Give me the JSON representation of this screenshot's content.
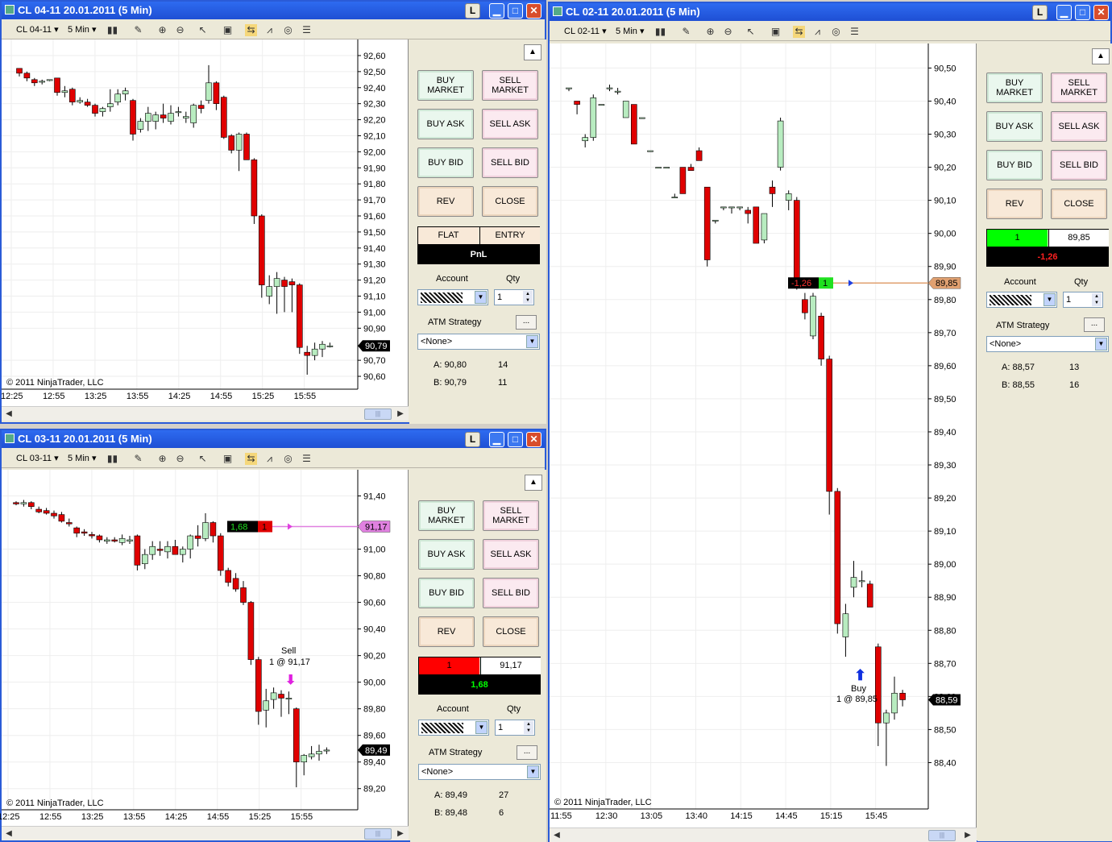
{
  "toolbar": {
    "interval": "5 Min",
    "minimize": "▁",
    "maximize": "□",
    "close": "✕",
    "l_button": "L"
  },
  "windows": [
    {
      "id": "w1",
      "title": "CL 04-11  20.01.2011 (5 Min)",
      "instrument": "CL 04-11",
      "copyright": "© 2011 NinjaTrader, LLC",
      "price_ticks": [
        "92,60",
        "92,50",
        "92,40",
        "92,30",
        "92,20",
        "92,10",
        "92,00",
        "91,90",
        "91,80",
        "91,70",
        "91,60",
        "91,50",
        "91,40",
        "91,30",
        "91,20",
        "91,10",
        "91,00",
        "90,90",
        "90,70",
        "90,60"
      ],
      "time_ticks": [
        "12:25",
        "12:55",
        "13:25",
        "13:55",
        "14:25",
        "14:55",
        "15:25",
        "15:55"
      ],
      "last_price": "90,79",
      "buttons": {
        "buy_market": "BUY MARKET",
        "sell_market": "SELL MARKET",
        "buy_ask": "BUY ASK",
        "sell_ask": "SELL ASK",
        "buy_bid": "BUY BID",
        "sell_bid": "SELL BID",
        "rev": "REV",
        "close": "CLOSE"
      },
      "position": {
        "left": "FLAT",
        "right": "ENTRY",
        "pnl": "PnL",
        "left_color": "#f8e9d8",
        "right_color": "#f8e9d8",
        "pnl_color": "#ffffff"
      },
      "account_label": "Account",
      "qty_label": "Qty",
      "qty": "1",
      "atm_label": "ATM Strategy",
      "atm_more": "...",
      "atm_value": "<None>",
      "ask": "A: 90,80",
      "ask_size": "14",
      "bid": "B: 90,79",
      "bid_size": "11"
    },
    {
      "id": "w2",
      "title": "CL 03-11  20.01.2011 (5 Min)",
      "instrument": "CL 03-11",
      "copyright": "© 2011 NinjaTrader, LLC",
      "price_ticks": [
        "91,40",
        "91,00",
        "90,80",
        "90,60",
        "90,40",
        "90,20",
        "90,00",
        "89,80",
        "89,60",
        "89,40",
        "89,20"
      ],
      "time_ticks": [
        "12:25",
        "12:55",
        "13:25",
        "13:55",
        "14:25",
        "14:55",
        "15:25",
        "15:55"
      ],
      "last_price": "89,49",
      "entry_price": "91,17",
      "order_marker": {
        "pnl": "1,68",
        "qty": "1"
      },
      "execution": {
        "side": "Sell",
        "detail": "1 @ 91,17"
      },
      "buttons": {
        "buy_market": "BUY MARKET",
        "sell_market": "SELL MARKET",
        "buy_ask": "BUY ASK",
        "sell_ask": "SELL ASK",
        "buy_bid": "BUY BID",
        "sell_bid": "SELL BID",
        "rev": "REV",
        "close": "CLOSE"
      },
      "position": {
        "left": "1",
        "right": "91,17",
        "pnl": "1,68",
        "left_color": "#ff0000",
        "right_color": "#ffffff",
        "pnl_color": "#00ff00"
      },
      "account_label": "Account",
      "qty_label": "Qty",
      "qty": "1",
      "atm_label": "ATM Strategy",
      "atm_more": "...",
      "atm_value": "<None>",
      "ask": "A: 89,49",
      "ask_size": "27",
      "bid": "B: 89,48",
      "bid_size": "6"
    },
    {
      "id": "w3",
      "title": "CL 02-11  20.01.2011 (5 Min)",
      "instrument": "CL 02-11",
      "copyright": "© 2011 NinjaTrader, LLC",
      "price_ticks": [
        "90,50",
        "90,40",
        "90,30",
        "90,20",
        "90,10",
        "90,00",
        "89,90",
        "89,80",
        "89,70",
        "89,60",
        "89,50",
        "89,40",
        "89,30",
        "89,20",
        "89,10",
        "89,00",
        "88,90",
        "88,80",
        "88,70",
        "88,60",
        "88,50",
        "88,40"
      ],
      "time_ticks": [
        "11:55",
        "12:30",
        "13:05",
        "13:40",
        "14:15",
        "14:45",
        "15:15",
        "15:45"
      ],
      "last_price": "88,59",
      "entry_price": "89,85",
      "order_marker": {
        "pnl": "-1,26",
        "qty": "1"
      },
      "execution": {
        "side": "Buy",
        "detail": "1 @ 89,85"
      },
      "buttons": {
        "buy_market": "BUY MARKET",
        "sell_market": "SELL MARKET",
        "buy_ask": "BUY ASK",
        "sell_ask": "SELL ASK",
        "buy_bid": "BUY BID",
        "sell_bid": "SELL BID",
        "rev": "REV",
        "close": "CLOSE"
      },
      "position": {
        "left": "1",
        "right": "89,85",
        "pnl": "-1,26",
        "left_color": "#00ff00",
        "right_color": "#ffffff",
        "pnl_color": "#ff2020"
      },
      "account_label": "Account",
      "qty_label": "Qty",
      "qty": "1",
      "atm_label": "ATM Strategy",
      "atm_more": "...",
      "atm_value": "<None>",
      "ask": "A: 88,57",
      "ask_size": "13",
      "bid": "B: 88,55",
      "bid_size": "16"
    }
  ],
  "chart_data": [
    {
      "type": "candlestick",
      "series": [
        {
          "candles": [
            [
              92.52,
              92.52,
              92.47,
              92.49
            ],
            [
              92.49,
              92.5,
              92.44,
              92.46
            ],
            [
              92.45,
              92.46,
              92.41,
              92.43
            ],
            [
              92.44,
              92.45,
              92.42,
              92.44
            ],
            [
              92.45,
              92.45,
              92.44,
              92.45
            ],
            [
              92.46,
              92.46,
              92.35,
              92.37
            ],
            [
              92.37,
              92.41,
              92.34,
              92.38
            ],
            [
              92.39,
              92.4,
              92.29,
              92.31
            ],
            [
              92.31,
              92.34,
              92.3,
              92.32
            ],
            [
              92.31,
              92.33,
              92.28,
              92.29
            ],
            [
              92.29,
              92.3,
              92.22,
              92.24
            ],
            [
              92.25,
              92.28,
              92.22,
              92.27
            ],
            [
              92.28,
              92.39,
              92.25,
              92.3
            ],
            [
              92.31,
              92.39,
              92.29,
              92.36
            ],
            [
              92.36,
              92.4,
              92.32,
              92.38
            ],
            [
              92.32,
              92.33,
              92.07,
              92.11
            ],
            [
              92.14,
              92.21,
              92.12,
              92.19
            ],
            [
              92.19,
              92.28,
              92.13,
              92.24
            ],
            [
              92.19,
              92.25,
              92.14,
              92.23
            ],
            [
              92.23,
              92.3,
              92.18,
              92.21
            ],
            [
              92.19,
              92.29,
              92.17,
              92.24
            ],
            [
              92.25,
              92.28,
              92.22,
              92.25
            ],
            [
              92.21,
              92.25,
              92.18,
              92.22
            ],
            [
              92.18,
              92.3,
              92.15,
              92.29
            ],
            [
              92.29,
              92.32,
              92.24,
              92.27
            ],
            [
              92.32,
              92.54,
              92.3,
              92.43
            ],
            [
              92.43,
              92.44,
              92.26,
              92.3
            ],
            [
              92.34,
              92.35,
              92.08,
              92.09
            ],
            [
              92.1,
              92.11,
              91.99,
              92.01
            ],
            [
              92.01,
              92.12,
              91.88,
              92.11
            ],
            [
              92.11,
              92.12,
              91.95,
              91.95
            ],
            [
              91.95,
              91.96,
              91.55,
              91.6
            ],
            [
              91.6,
              91.61,
              91.09,
              91.17
            ],
            [
              91.1,
              91.23,
              91.05,
              91.16
            ],
            [
              91.16,
              91.25,
              90.99,
              91.21
            ],
            [
              91.2,
              91.22,
              91.0,
              91.16
            ],
            [
              91.19,
              91.21,
              91.0,
              91.17
            ],
            [
              91.17,
              91.18,
              90.74,
              90.78
            ],
            [
              90.75,
              90.79,
              90.61,
              90.73
            ],
            [
              90.73,
              90.81,
              90.7,
              90.77
            ],
            [
              90.77,
              90.82,
              90.72,
              90.8
            ],
            [
              90.79,
              90.81,
              90.78,
              90.79
            ]
          ]
        }
      ],
      "ylim": [
        90.55,
        92.65
      ]
    },
    {
      "type": "candlestick",
      "series": [
        {
          "candles": [
            [
              91.35,
              91.36,
              91.33,
              91.34
            ],
            [
              91.34,
              91.37,
              91.32,
              91.35
            ],
            [
              91.35,
              91.36,
              91.3,
              91.32
            ],
            [
              91.3,
              91.32,
              91.27,
              91.28
            ],
            [
              91.29,
              91.31,
              91.26,
              91.27
            ],
            [
              91.27,
              91.29,
              91.23,
              91.25
            ],
            [
              91.26,
              91.28,
              91.2,
              91.21
            ],
            [
              91.2,
              91.23,
              91.17,
              91.19
            ],
            [
              91.16,
              91.17,
              91.09,
              91.12
            ],
            [
              91.13,
              91.15,
              91.1,
              91.12
            ],
            [
              91.11,
              91.13,
              91.08,
              91.1
            ],
            [
              91.1,
              91.11,
              91.05,
              91.07
            ],
            [
              91.06,
              91.09,
              91.04,
              91.07
            ],
            [
              91.07,
              91.09,
              91.05,
              91.06
            ],
            [
              91.05,
              91.11,
              91.03,
              91.08
            ],
            [
              91.06,
              91.1,
              91.04,
              91.07
            ],
            [
              91.1,
              91.11,
              90.84,
              90.88
            ],
            [
              90.89,
              91.0,
              90.85,
              90.96
            ],
            [
              90.96,
              91.06,
              90.92,
              91.02
            ],
            [
              91.0,
              91.06,
              90.95,
              90.99
            ],
            [
              90.98,
              91.06,
              90.93,
              91.02
            ],
            [
              91.02,
              91.07,
              90.97,
              90.96
            ],
            [
              90.96,
              91.02,
              90.9,
              91.0
            ],
            [
              91.0,
              91.11,
              90.93,
              91.1
            ],
            [
              91.1,
              91.18,
              91.02,
              91.08
            ],
            [
              91.08,
              91.27,
              91.06,
              91.2
            ],
            [
              91.2,
              91.21,
              91.05,
              91.1
            ],
            [
              91.1,
              91.12,
              90.8,
              90.84
            ],
            [
              90.84,
              90.86,
              90.72,
              90.75
            ],
            [
              90.78,
              90.82,
              90.68,
              90.7
            ],
            [
              90.71,
              90.76,
              90.58,
              90.6
            ],
            [
              90.6,
              90.61,
              90.13,
              90.17
            ],
            [
              90.17,
              90.19,
              89.68,
              89.78
            ],
            [
              89.79,
              89.95,
              89.66,
              89.86
            ],
            [
              89.87,
              89.96,
              89.8,
              89.92
            ],
            [
              89.91,
              89.94,
              89.74,
              89.88
            ],
            [
              89.88,
              89.93,
              89.76,
              89.88
            ],
            [
              89.8,
              89.81,
              89.21,
              89.4
            ],
            [
              89.4,
              89.46,
              89.3,
              89.45
            ],
            [
              89.44,
              89.52,
              89.42,
              89.46
            ],
            [
              89.46,
              89.53,
              89.41,
              89.48
            ],
            [
              89.49,
              89.51,
              89.46,
              89.49
            ]
          ]
        }
      ],
      "ylim": [
        89.15,
        91.5
      ]
    },
    {
      "type": "candlestick",
      "series": [
        {
          "candles": [
            [
              90.44,
              90.44,
              90.43,
              90.44
            ],
            [
              90.4,
              90.4,
              90.36,
              90.39
            ],
            [
              90.28,
              90.3,
              90.26,
              90.29
            ],
            [
              90.29,
              90.42,
              90.28,
              90.41
            ],
            [
              90.39,
              90.39,
              90.39,
              90.39
            ],
            [
              90.44,
              90.45,
              90.43,
              90.44
            ],
            [
              90.43,
              90.44,
              90.42,
              90.43
            ],
            [
              90.35,
              90.4,
              90.35,
              90.4
            ],
            [
              90.39,
              90.39,
              90.27,
              90.27
            ],
            [
              90.35,
              90.35,
              90.35,
              90.35
            ],
            [
              90.25,
              90.25,
              90.25,
              90.25
            ],
            [
              90.2,
              90.2,
              90.2,
              90.2
            ],
            [
              90.2,
              90.2,
              90.2,
              90.2
            ],
            [
              90.11,
              90.12,
              90.11,
              90.11
            ],
            [
              90.2,
              90.2,
              90.12,
              90.12
            ],
            [
              90.2,
              90.21,
              90.19,
              90.19
            ],
            [
              90.25,
              90.26,
              90.22,
              90.22
            ],
            [
              90.14,
              90.14,
              89.9,
              89.92
            ],
            [
              90.04,
              90.04,
              90.03,
              90.04
            ],
            [
              90.08,
              90.08,
              90.07,
              90.08
            ],
            [
              90.08,
              90.08,
              90.06,
              90.08
            ],
            [
              90.08,
              90.08,
              90.07,
              90.08
            ],
            [
              90.07,
              90.08,
              90.03,
              90.06
            ],
            [
              90.08,
              90.08,
              89.97,
              89.97
            ],
            [
              89.98,
              90.06,
              89.97,
              90.06
            ],
            [
              90.14,
              90.16,
              90.08,
              90.12
            ],
            [
              90.2,
              90.35,
              90.19,
              90.34
            ],
            [
              90.1,
              90.13,
              90.07,
              90.12
            ],
            [
              90.1,
              90.11,
              89.83,
              89.85
            ],
            [
              89.8,
              89.82,
              89.74,
              89.76
            ],
            [
              89.69,
              89.82,
              89.68,
              89.81
            ],
            [
              89.75,
              89.76,
              89.6,
              89.62
            ],
            [
              89.62,
              89.63,
              89.15,
              89.22
            ],
            [
              89.22,
              89.23,
              88.79,
              88.82
            ],
            [
              88.78,
              88.88,
              88.72,
              88.85
            ],
            [
              88.93,
              89.01,
              88.9,
              88.96
            ],
            [
              88.95,
              88.98,
              88.93,
              88.95
            ],
            [
              88.94,
              88.95,
              88.87,
              88.87
            ],
            [
              88.75,
              88.76,
              88.45,
              88.52
            ],
            [
              88.52,
              88.56,
              88.39,
              88.55
            ],
            [
              88.55,
              88.66,
              88.53,
              88.61
            ],
            [
              88.61,
              88.62,
              88.57,
              88.59
            ]
          ]
        }
      ],
      "ylim": [
        88.35,
        90.54
      ]
    }
  ]
}
